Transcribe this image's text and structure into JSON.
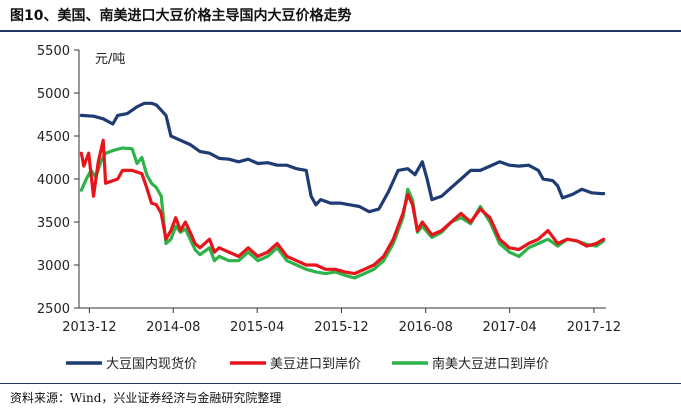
{
  "figure": {
    "title": "图10、美国、南美进口大豆价格主导国内大豆价格走势",
    "source": "资料来源：Wind，兴业证券经济与金融研究院整理"
  },
  "chart_data": {
    "type": "line",
    "title": "图10、美国、南美进口大豆价格主导国内大豆价格走势",
    "ylabel": "元/吨",
    "xlabel": "",
    "ylim": [
      2500,
      5500
    ],
    "yticks": [
      2500,
      3000,
      3500,
      4000,
      4500,
      5000,
      5500
    ],
    "xlim": [
      "2013-11-01",
      "2018-01-05"
    ],
    "xtick_labels": [
      "2013-12",
      "2014-08",
      "2015-04",
      "2015-12",
      "2016-08",
      "2017-04",
      "2017-12"
    ],
    "xtick_dates": [
      "2013-12-01",
      "2014-08-01",
      "2015-04-01",
      "2015-12-01",
      "2016-08-01",
      "2017-04-01",
      "2017-12-01"
    ],
    "grid": false,
    "legend_position": "bottom",
    "series": [
      {
        "name": "大豆国内现货价",
        "color": "#1f3b73",
        "points": [
          [
            "2013-11-08",
            4740
          ],
          [
            "2013-12-13",
            4730
          ],
          [
            "2014-01-10",
            4700
          ],
          [
            "2014-02-07",
            4640
          ],
          [
            "2014-02-21",
            4740
          ],
          [
            "2014-03-21",
            4760
          ],
          [
            "2014-04-18",
            4840
          ],
          [
            "2014-05-09",
            4880
          ],
          [
            "2014-05-30",
            4880
          ],
          [
            "2014-06-13",
            4860
          ],
          [
            "2014-06-27",
            4800
          ],
          [
            "2014-07-11",
            4740
          ],
          [
            "2014-07-25",
            4500
          ],
          [
            "2014-08-22",
            4450
          ],
          [
            "2014-09-19",
            4400
          ],
          [
            "2014-10-17",
            4320
          ],
          [
            "2014-11-14",
            4300
          ],
          [
            "2014-12-12",
            4240
          ],
          [
            "2015-01-09",
            4230
          ],
          [
            "2015-02-06",
            4200
          ],
          [
            "2015-03-06",
            4230
          ],
          [
            "2015-04-03",
            4180
          ],
          [
            "2015-05-01",
            4190
          ],
          [
            "2015-05-29",
            4160
          ],
          [
            "2015-06-26",
            4160
          ],
          [
            "2015-07-24",
            4120
          ],
          [
            "2015-08-21",
            4100
          ],
          [
            "2015-09-04",
            3800
          ],
          [
            "2015-09-18",
            3700
          ],
          [
            "2015-10-02",
            3760
          ],
          [
            "2015-10-30",
            3720
          ],
          [
            "2015-11-27",
            3720
          ],
          [
            "2015-12-25",
            3700
          ],
          [
            "2016-01-22",
            3680
          ],
          [
            "2016-02-19",
            3620
          ],
          [
            "2016-03-18",
            3650
          ],
          [
            "2016-04-15",
            3850
          ],
          [
            "2016-05-13",
            4100
          ],
          [
            "2016-06-10",
            4120
          ],
          [
            "2016-07-01",
            4050
          ],
          [
            "2016-07-22",
            4200
          ],
          [
            "2016-08-05",
            4000
          ],
          [
            "2016-08-19",
            3760
          ],
          [
            "2016-09-16",
            3800
          ],
          [
            "2016-10-14",
            3900
          ],
          [
            "2016-11-11",
            4000
          ],
          [
            "2016-12-09",
            4100
          ],
          [
            "2017-01-06",
            4100
          ],
          [
            "2017-02-03",
            4150
          ],
          [
            "2017-03-03",
            4200
          ],
          [
            "2017-03-31",
            4160
          ],
          [
            "2017-04-28",
            4150
          ],
          [
            "2017-05-26",
            4160
          ],
          [
            "2017-06-23",
            4100
          ],
          [
            "2017-07-07",
            4000
          ],
          [
            "2017-08-04",
            3980
          ],
          [
            "2017-08-18",
            3920
          ],
          [
            "2017-09-01",
            3780
          ],
          [
            "2017-09-29",
            3820
          ],
          [
            "2017-10-27",
            3880
          ],
          [
            "2017-11-24",
            3840
          ],
          [
            "2017-12-22",
            3830
          ],
          [
            "2017-12-29",
            3830
          ]
        ]
      },
      {
        "name": "美豆进口到岸价",
        "color": "#e8141c",
        "points": [
          [
            "2013-11-08",
            4300
          ],
          [
            "2013-11-15",
            4150
          ],
          [
            "2013-11-29",
            4300
          ],
          [
            "2013-12-13",
            3800
          ],
          [
            "2013-12-27",
            4200
          ],
          [
            "2014-01-10",
            4450
          ],
          [
            "2014-01-17",
            3950
          ],
          [
            "2014-02-07",
            3980
          ],
          [
            "2014-02-21",
            4000
          ],
          [
            "2014-03-07",
            4100
          ],
          [
            "2014-04-04",
            4100
          ],
          [
            "2014-05-02",
            4060
          ],
          [
            "2014-05-16",
            3900
          ],
          [
            "2014-05-30",
            3720
          ],
          [
            "2014-06-13",
            3700
          ],
          [
            "2014-06-27",
            3600
          ],
          [
            "2014-07-11",
            3300
          ],
          [
            "2014-07-25",
            3400
          ],
          [
            "2014-08-08",
            3550
          ],
          [
            "2014-08-22",
            3400
          ],
          [
            "2014-09-05",
            3500
          ],
          [
            "2014-09-19",
            3380
          ],
          [
            "2014-10-03",
            3250
          ],
          [
            "2014-10-17",
            3200
          ],
          [
            "2014-11-14",
            3300
          ],
          [
            "2014-11-28",
            3150
          ],
          [
            "2014-12-12",
            3200
          ],
          [
            "2015-01-09",
            3150
          ],
          [
            "2015-02-06",
            3100
          ],
          [
            "2015-03-06",
            3200
          ],
          [
            "2015-04-03",
            3100
          ],
          [
            "2015-05-01",
            3150
          ],
          [
            "2015-05-29",
            3250
          ],
          [
            "2015-06-26",
            3100
          ],
          [
            "2015-07-24",
            3050
          ],
          [
            "2015-08-21",
            3000
          ],
          [
            "2015-09-18",
            3000
          ],
          [
            "2015-10-16",
            2950
          ],
          [
            "2015-11-13",
            2950
          ],
          [
            "2015-12-11",
            2920
          ],
          [
            "2016-01-08",
            2900
          ],
          [
            "2016-02-05",
            2950
          ],
          [
            "2016-03-04",
            3000
          ],
          [
            "2016-04-01",
            3100
          ],
          [
            "2016-04-29",
            3300
          ],
          [
            "2016-05-27",
            3600
          ],
          [
            "2016-06-10",
            3820
          ],
          [
            "2016-06-24",
            3700
          ],
          [
            "2016-07-08",
            3400
          ],
          [
            "2016-07-22",
            3500
          ],
          [
            "2016-08-19",
            3350
          ],
          [
            "2016-09-16",
            3400
          ],
          [
            "2016-10-14",
            3500
          ],
          [
            "2016-11-11",
            3600
          ],
          [
            "2016-12-09",
            3500
          ],
          [
            "2017-01-06",
            3650
          ],
          [
            "2017-02-03",
            3550
          ],
          [
            "2017-03-03",
            3300
          ],
          [
            "2017-03-31",
            3200
          ],
          [
            "2017-04-28",
            3180
          ],
          [
            "2017-05-26",
            3250
          ],
          [
            "2017-06-23",
            3300
          ],
          [
            "2017-07-21",
            3400
          ],
          [
            "2017-08-18",
            3250
          ],
          [
            "2017-09-15",
            3300
          ],
          [
            "2017-10-13",
            3280
          ],
          [
            "2017-11-10",
            3220
          ],
          [
            "2017-12-08",
            3250
          ],
          [
            "2017-12-29",
            3300
          ]
        ]
      },
      {
        "name": "南美大豆进口到岸价",
        "color": "#2db34a",
        "points": [
          [
            "2013-11-08",
            3870
          ],
          [
            "2013-11-22",
            4000
          ],
          [
            "2013-12-06",
            4100
          ],
          [
            "2013-12-20",
            4020
          ],
          [
            "2014-01-03",
            4200
          ],
          [
            "2014-01-17",
            4300
          ],
          [
            "2014-02-07",
            4330
          ],
          [
            "2014-03-07",
            4360
          ],
          [
            "2014-04-04",
            4350
          ],
          [
            "2014-04-18",
            4180
          ],
          [
            "2014-05-02",
            4250
          ],
          [
            "2014-05-16",
            4050
          ],
          [
            "2014-05-30",
            3950
          ],
          [
            "2014-06-13",
            3900
          ],
          [
            "2014-06-27",
            3800
          ],
          [
            "2014-07-11",
            3250
          ],
          [
            "2014-07-25",
            3300
          ],
          [
            "2014-08-08",
            3450
          ],
          [
            "2014-08-22",
            3380
          ],
          [
            "2014-09-05",
            3420
          ],
          [
            "2014-09-19",
            3300
          ],
          [
            "2014-10-03",
            3180
          ],
          [
            "2014-10-17",
            3120
          ],
          [
            "2014-11-14",
            3200
          ],
          [
            "2014-11-28",
            3050
          ],
          [
            "2014-12-12",
            3100
          ],
          [
            "2015-01-09",
            3050
          ],
          [
            "2015-02-06",
            3050
          ],
          [
            "2015-03-06",
            3150
          ],
          [
            "2015-04-03",
            3050
          ],
          [
            "2015-05-01",
            3100
          ],
          [
            "2015-05-29",
            3200
          ],
          [
            "2015-06-26",
            3050
          ],
          [
            "2015-07-24",
            3000
          ],
          [
            "2015-08-21",
            2950
          ],
          [
            "2015-09-18",
            2920
          ],
          [
            "2015-10-16",
            2900
          ],
          [
            "2015-11-13",
            2920
          ],
          [
            "2015-12-11",
            2880
          ],
          [
            "2016-01-08",
            2850
          ],
          [
            "2016-02-05",
            2900
          ],
          [
            "2016-03-04",
            2950
          ],
          [
            "2016-04-01",
            3050
          ],
          [
            "2016-04-29",
            3250
          ],
          [
            "2016-05-27",
            3550
          ],
          [
            "2016-06-10",
            3880
          ],
          [
            "2016-06-24",
            3750
          ],
          [
            "2016-07-08",
            3380
          ],
          [
            "2016-07-22",
            3450
          ],
          [
            "2016-08-19",
            3320
          ],
          [
            "2016-09-16",
            3380
          ],
          [
            "2016-10-14",
            3500
          ],
          [
            "2016-11-11",
            3550
          ],
          [
            "2016-12-09",
            3480
          ],
          [
            "2017-01-06",
            3680
          ],
          [
            "2017-02-03",
            3500
          ],
          [
            "2017-03-03",
            3250
          ],
          [
            "2017-03-31",
            3150
          ],
          [
            "2017-04-28",
            3100
          ],
          [
            "2017-05-26",
            3200
          ],
          [
            "2017-06-23",
            3250
          ],
          [
            "2017-07-21",
            3300
          ],
          [
            "2017-08-18",
            3220
          ],
          [
            "2017-09-15",
            3300
          ],
          [
            "2017-10-13",
            3280
          ],
          [
            "2017-11-10",
            3240
          ],
          [
            "2017-12-08",
            3220
          ],
          [
            "2017-12-29",
            3280
          ]
        ]
      }
    ]
  }
}
